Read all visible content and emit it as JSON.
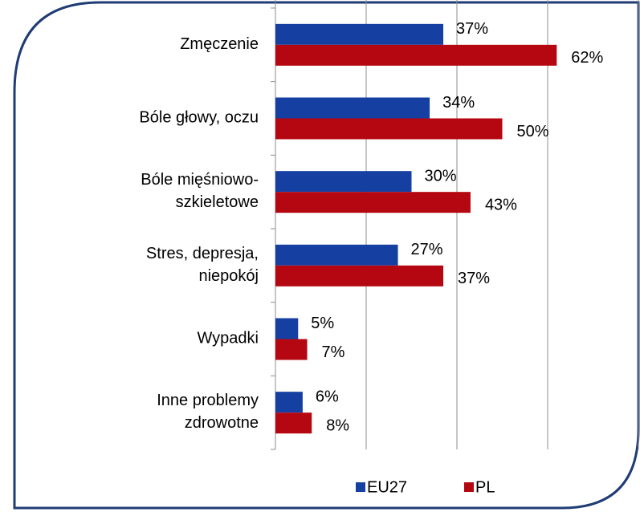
{
  "chart_data": {
    "type": "barh",
    "categories": [
      "Zmęczenie",
      "Bóle głowy, oczu",
      "Bóle mięśniowo-\nszkieletowe",
      "Stres, depresja,\nniepokój",
      "Wypadki",
      "Inne problemy\nzdrowotne"
    ],
    "series": [
      {
        "name": "EU27",
        "color": "#1540a2",
        "values": [
          37,
          34,
          30,
          27,
          5,
          6
        ],
        "value_labels": [
          "37%",
          "34%",
          "30%",
          "27%",
          "5%",
          "6%"
        ]
      },
      {
        "name": "PL",
        "color": "#b50711",
        "values": [
          62,
          50,
          43,
          37,
          7,
          8
        ],
        "value_labels": [
          "62%",
          "50%",
          "43%",
          "37%",
          "7%",
          "8%"
        ]
      }
    ],
    "xlim": [
      0,
      80
    ],
    "xticks": [
      0,
      20,
      40,
      60,
      80
    ],
    "grid": true,
    "legend": "bottom"
  }
}
